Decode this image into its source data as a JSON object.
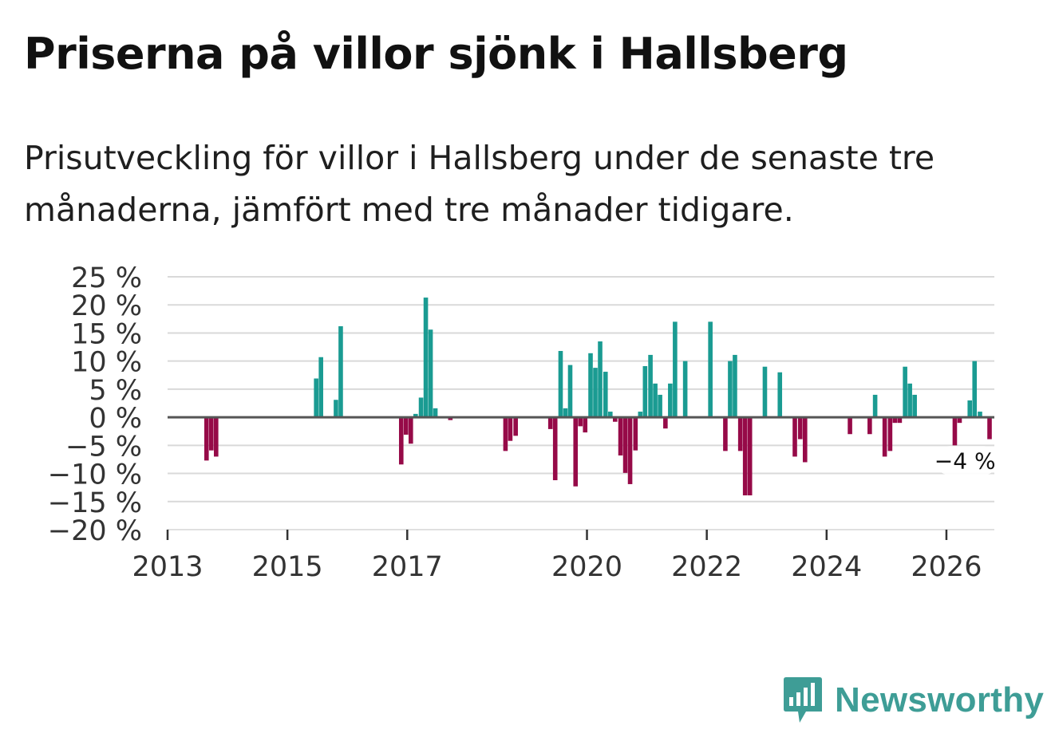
{
  "title": "Priserna på villor sjönk i Hallsberg",
  "subtitle": "Prisutveckling för villor i Hallsberg under de senaste tre månaderna, jämfört med tre månader tidigare.",
  "brand": {
    "name": "Newsworthy",
    "icon": "newsworthy-logo-icon"
  },
  "colors": {
    "positive": "#1a9b92",
    "negative": "#960a48",
    "zero_line": "#555555",
    "grid": "#d9d9d9",
    "text": "#333333",
    "brand": "#3e9d96"
  },
  "chart_data": {
    "type": "bar",
    "title": "Priserna på villor sjönk i Hallsberg",
    "xlabel": "",
    "ylabel": "",
    "xlim": [
      2013,
      2026.8
    ],
    "ylim": [
      -20,
      25
    ],
    "grid": true,
    "x_ticks": [
      2013,
      2015,
      2017,
      2020,
      2022,
      2024,
      2026
    ],
    "x_tick_labels": [
      "2013",
      "2015",
      "2017",
      "2020",
      "2022",
      "2024",
      "2026"
    ],
    "y_ticks": [
      25,
      20,
      15,
      10,
      5,
      0,
      -5,
      -10,
      -15,
      -20
    ],
    "y_tick_labels": [
      "25 %",
      "20 %",
      "15 %",
      "10 %",
      "5 %",
      "0 %",
      "−5 %",
      "−10 %",
      "−15 %",
      "−20 %"
    ],
    "unit": "%",
    "annotation": {
      "x": 2026.15,
      "value": -4,
      "label": "−4 %"
    },
    "series": [
      {
        "name": "Prisutveckling",
        "points": [
          {
            "x": 2013.65,
            "y": -7.7
          },
          {
            "x": 2013.73,
            "y": -5.9
          },
          {
            "x": 2013.81,
            "y": -7.0
          },
          {
            "x": 2015.48,
            "y": 6.9
          },
          {
            "x": 2015.56,
            "y": 10.7
          },
          {
            "x": 2015.81,
            "y": 3.1
          },
          {
            "x": 2015.89,
            "y": 16.2
          },
          {
            "x": 2016.9,
            "y": -8.4
          },
          {
            "x": 2016.98,
            "y": -3.1
          },
          {
            "x": 2017.06,
            "y": -4.7
          },
          {
            "x": 2017.14,
            "y": 0.6
          },
          {
            "x": 2016.9,
            "y": -8.4
          },
          {
            "x": 2016.98,
            "y": -3.1
          },
          {
            "x": 2017.06,
            "y": -4.7
          },
          {
            "x": 2017.14,
            "y": 0.6
          },
          {
            "x": 2017.23,
            "y": 3.5
          },
          {
            "x": 2017.31,
            "y": 21.3
          },
          {
            "x": 2017.39,
            "y": 15.6
          },
          {
            "x": 2017.47,
            "y": 1.6
          },
          {
            "x": 2017.72,
            "y": -0.5
          },
          {
            "x": 2018.64,
            "y": -6.0
          },
          {
            "x": 2018.72,
            "y": -4.2
          },
          {
            "x": 2018.81,
            "y": -3.3
          },
          {
            "x": 2019.39,
            "y": -2.1
          },
          {
            "x": 2019.47,
            "y": -11.2
          },
          {
            "x": 2019.56,
            "y": 11.8
          },
          {
            "x": 2019.64,
            "y": 1.6
          },
          {
            "x": 2019.72,
            "y": 9.3
          },
          {
            "x": 2019.81,
            "y": -12.3
          },
          {
            "x": 2019.89,
            "y": -1.6
          },
          {
            "x": 2019.97,
            "y": -2.7
          },
          {
            "x": 2020.06,
            "y": 11.4
          },
          {
            "x": 2020.14,
            "y": 8.8
          },
          {
            "x": 2020.22,
            "y": 13.5
          },
          {
            "x": 2020.31,
            "y": 8.1
          },
          {
            "x": 2020.39,
            "y": 1.0
          },
          {
            "x": 2020.47,
            "y": -0.8
          },
          {
            "x": 2020.56,
            "y": -6.8
          },
          {
            "x": 2020.64,
            "y": -9.9
          },
          {
            "x": 2020.72,
            "y": -11.9
          },
          {
            "x": 2020.81,
            "y": -5.9
          },
          {
            "x": 2020.89,
            "y": 1.0
          },
          {
            "x": 2020.97,
            "y": 9.1
          },
          {
            "x": 2021.06,
            "y": 11.1
          },
          {
            "x": 2021.14,
            "y": 6.0
          },
          {
            "x": 2021.22,
            "y": 4.0
          },
          {
            "x": 2021.31,
            "y": -2.0
          },
          {
            "x": 2021.39,
            "y": 6.0
          },
          {
            "x": 2021.47,
            "y": 17.0
          },
          {
            "x": 2021.64,
            "y": 10.0
          },
          {
            "x": 2022.06,
            "y": 17.0
          },
          {
            "x": 2022.31,
            "y": -6.0
          },
          {
            "x": 2022.39,
            "y": 10.0
          },
          {
            "x": 2022.47,
            "y": 11.1
          },
          {
            "x": 2022.56,
            "y": -6.0
          },
          {
            "x": 2022.64,
            "y": -13.9
          },
          {
            "x": 2022.72,
            "y": -13.9
          },
          {
            "x": 2022.97,
            "y": 9.0
          },
          {
            "x": 2023.22,
            "y": 8.0
          },
          {
            "x": 2023.47,
            "y": -7.0
          },
          {
            "x": 2023.56,
            "y": -3.9
          },
          {
            "x": 2023.64,
            "y": -8.0
          },
          {
            "x": 2024.39,
            "y": -3.0
          },
          {
            "x": 2024.72,
            "y": -3.0
          },
          {
            "x": 2024.81,
            "y": 4.0
          },
          {
            "x": 2024.97,
            "y": -7.0
          },
          {
            "x": 2025.06,
            "y": -6.0
          },
          {
            "x": 2025.14,
            "y": -1.0
          },
          {
            "x": 2025.22,
            "y": -1.0
          },
          {
            "x": 2025.31,
            "y": 9.0
          },
          {
            "x": 2025.39,
            "y": 6.0
          },
          {
            "x": 2025.47,
            "y": 4.0
          },
          {
            "x": 2026.14,
            "y": -5.0
          },
          {
            "x": 2026.22,
            "y": -1.0
          },
          {
            "x": 2026.39,
            "y": 3.0
          },
          {
            "x": 2026.47,
            "y": 10.0
          },
          {
            "x": 2026.56,
            "y": 1.0
          },
          {
            "x": 2026.72,
            "y": -3.9
          }
        ]
      }
    ]
  }
}
